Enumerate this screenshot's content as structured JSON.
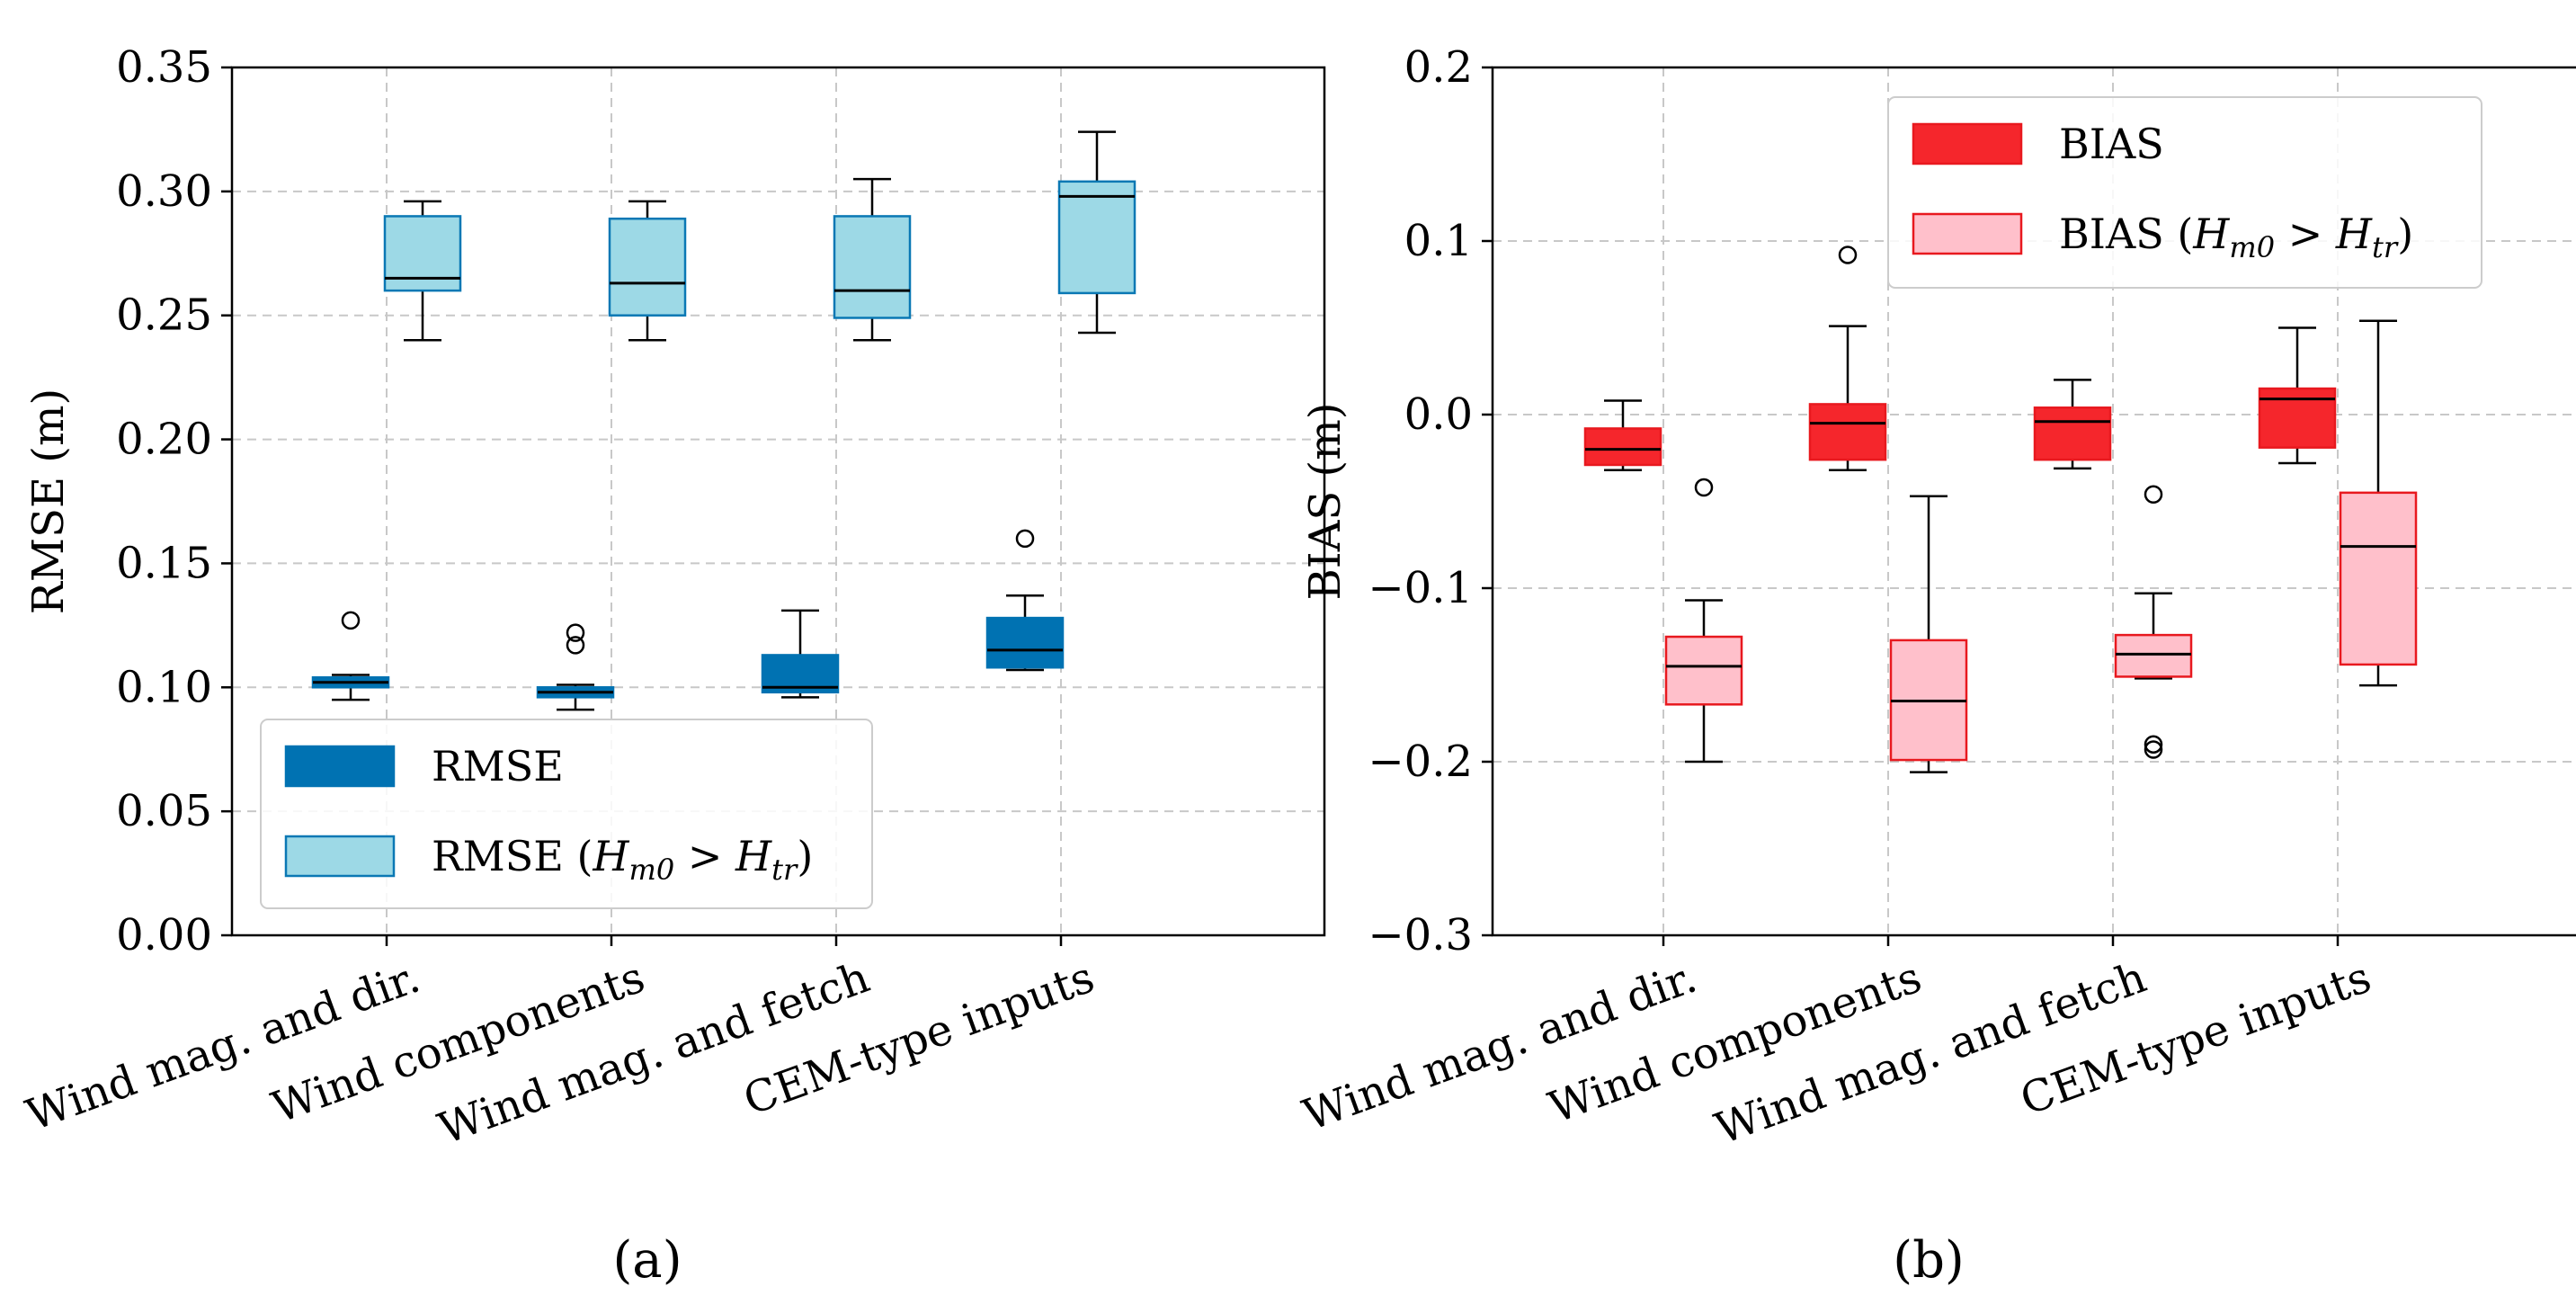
{
  "chart_data": [
    {
      "type": "boxplot",
      "panel_label": "(a)",
      "ylabel": "RMSE (m)",
      "ylim": [
        0,
        0.35
      ],
      "yticks": [
        "0.00",
        "0.05",
        "0.10",
        "0.15",
        "0.20",
        "0.25",
        "0.30",
        "0.35"
      ],
      "grid": true,
      "categories": [
        "Wind mag. and dir.",
        "Wind components",
        "Wind mag. and fetch",
        "CEM-type inputs"
      ],
      "legend_position": "lower-left",
      "series": [
        {
          "name": "RMSE",
          "legend_label": "RMSE",
          "fill": "#0072B2",
          "edge": "#0072B2",
          "median_color": "#000000",
          "boxes": [
            {
              "whislo": 0.095,
              "q1": 0.1,
              "med": 0.102,
              "q3": 0.104,
              "whishi": 0.105,
              "fliers": [
                0.127
              ]
            },
            {
              "whislo": 0.091,
              "q1": 0.096,
              "med": 0.098,
              "q3": 0.1,
              "whishi": 0.101,
              "fliers": [
                0.117,
                0.122
              ]
            },
            {
              "whislo": 0.096,
              "q1": 0.098,
              "med": 0.1,
              "q3": 0.113,
              "whishi": 0.131,
              "fliers": []
            },
            {
              "whislo": 0.107,
              "q1": 0.108,
              "med": 0.115,
              "q3": 0.128,
              "whishi": 0.137,
              "fliers": [
                0.16
              ]
            }
          ]
        },
        {
          "name": "RMSE (Hm0 > Htr)",
          "legend_label": "RMSE (",
          "legend_sub1": "m0",
          "legend_sub2": "tr",
          "fill": "#9DD9E6",
          "edge": "#0A78B4",
          "median_color": "#000000",
          "boxes": [
            {
              "whislo": 0.24,
              "q1": 0.26,
              "med": 0.265,
              "q3": 0.29,
              "whishi": 0.296,
              "fliers": []
            },
            {
              "whislo": 0.24,
              "q1": 0.25,
              "med": 0.263,
              "q3": 0.289,
              "whishi": 0.296,
              "fliers": []
            },
            {
              "whislo": 0.24,
              "q1": 0.249,
              "med": 0.26,
              "q3": 0.29,
              "whishi": 0.305,
              "fliers": []
            },
            {
              "whislo": 0.243,
              "q1": 0.259,
              "med": 0.298,
              "q3": 0.304,
              "whishi": 0.324,
              "fliers": []
            }
          ]
        }
      ]
    },
    {
      "type": "boxplot",
      "panel_label": "(b)",
      "ylabel": "BIAS (m)",
      "ylim": [
        -0.3,
        0.2
      ],
      "yticks": [
        "−0.3",
        "−0.2",
        "−0.1",
        "0.0",
        "0.1",
        "0.2"
      ],
      "grid": true,
      "categories": [
        "Wind mag. and dir.",
        "Wind components",
        "Wind mag. and fetch",
        "CEM-type inputs"
      ],
      "legend_position": "upper-right",
      "series": [
        {
          "name": "BIAS",
          "legend_label": "BIAS",
          "fill": "#F5262C",
          "edge": "#E8191F",
          "median_color": "#000000",
          "boxes": [
            {
              "whislo": -0.032,
              "q1": -0.029,
              "med": -0.02,
              "q3": -0.008,
              "whishi": 0.008,
              "fliers": []
            },
            {
              "whislo": -0.032,
              "q1": -0.026,
              "med": -0.005,
              "q3": 0.006,
              "whishi": 0.051,
              "fliers": [
                0.092
              ]
            },
            {
              "whislo": -0.031,
              "q1": -0.026,
              "med": -0.004,
              "q3": 0.004,
              "whishi": 0.02,
              "fliers": []
            },
            {
              "whislo": -0.028,
              "q1": -0.019,
              "med": 0.009,
              "q3": 0.015,
              "whishi": 0.05,
              "fliers": []
            }
          ]
        },
        {
          "name": "BIAS (Hm0 > Htr)",
          "legend_label": "BIAS (",
          "legend_sub1": "m0",
          "legend_sub2": "tr",
          "fill": "#FFC0CB",
          "edge": "#E8191F",
          "median_color": "#000000",
          "boxes": [
            {
              "whislo": -0.2,
              "q1": -0.167,
              "med": -0.145,
              "q3": -0.128,
              "whishi": -0.107,
              "fliers": [
                -0.042
              ]
            },
            {
              "whislo": -0.206,
              "q1": -0.199,
              "med": -0.165,
              "q3": -0.13,
              "whishi": -0.047,
              "fliers": []
            },
            {
              "whislo": -0.152,
              "q1": -0.151,
              "med": -0.138,
              "q3": -0.127,
              "whishi": -0.103,
              "fliers": [
                -0.046,
                -0.19,
                -0.193
              ]
            },
            {
              "whislo": -0.156,
              "q1": -0.144,
              "med": -0.076,
              "q3": -0.045,
              "whishi": 0.054,
              "fliers": []
            }
          ]
        }
      ]
    }
  ]
}
